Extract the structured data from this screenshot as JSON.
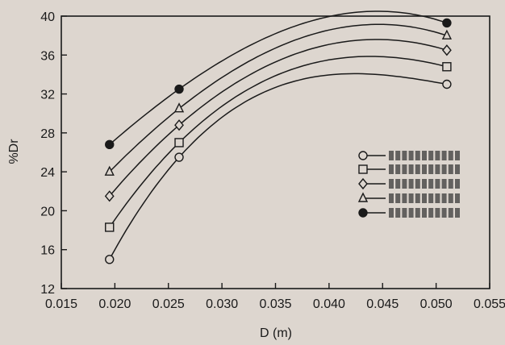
{
  "chart_data": {
    "type": "line",
    "xlabel": "D (m)",
    "ylabel": "%Dr",
    "xlim": [
      0.015,
      0.055
    ],
    "ylim": [
      12,
      40
    ],
    "x_ticks": [
      "0.015",
      "0.020",
      "0.025",
      "0.030",
      "0.035",
      "0.040",
      "0.045",
      "0.050",
      "0.055"
    ],
    "y_ticks": [
      "12",
      "16",
      "20",
      "24",
      "28",
      "32",
      "36",
      "40"
    ],
    "x_tick_values": [
      0.015,
      0.02,
      0.025,
      0.03,
      0.035,
      0.04,
      0.045,
      0.05,
      0.055
    ],
    "y_tick_values": [
      12,
      16,
      20,
      24,
      28,
      32,
      36,
      40
    ],
    "grid": false,
    "legend_position": "right",
    "series": [
      {
        "marker": "circle-open",
        "color": "#222222",
        "x": [
          0.0195,
          0.026,
          0.051
        ],
        "y": [
          15.0,
          25.5,
          33.0
        ]
      },
      {
        "marker": "square-open",
        "color": "#222222",
        "x": [
          0.0195,
          0.026,
          0.051
        ],
        "y": [
          18.3,
          27.0,
          34.8
        ]
      },
      {
        "marker": "diamond-open",
        "color": "#222222",
        "x": [
          0.0195,
          0.026,
          0.051
        ],
        "y": [
          21.5,
          28.8,
          36.5
        ]
      },
      {
        "marker": "triangle-open",
        "color": "#222222",
        "x": [
          0.0195,
          0.026,
          0.051
        ],
        "y": [
          24.0,
          30.5,
          38.0
        ]
      },
      {
        "marker": "circle-filled",
        "color": "#222222",
        "x": [
          0.0195,
          0.026,
          0.051
        ],
        "y": [
          26.8,
          32.5,
          39.3
        ]
      }
    ]
  }
}
